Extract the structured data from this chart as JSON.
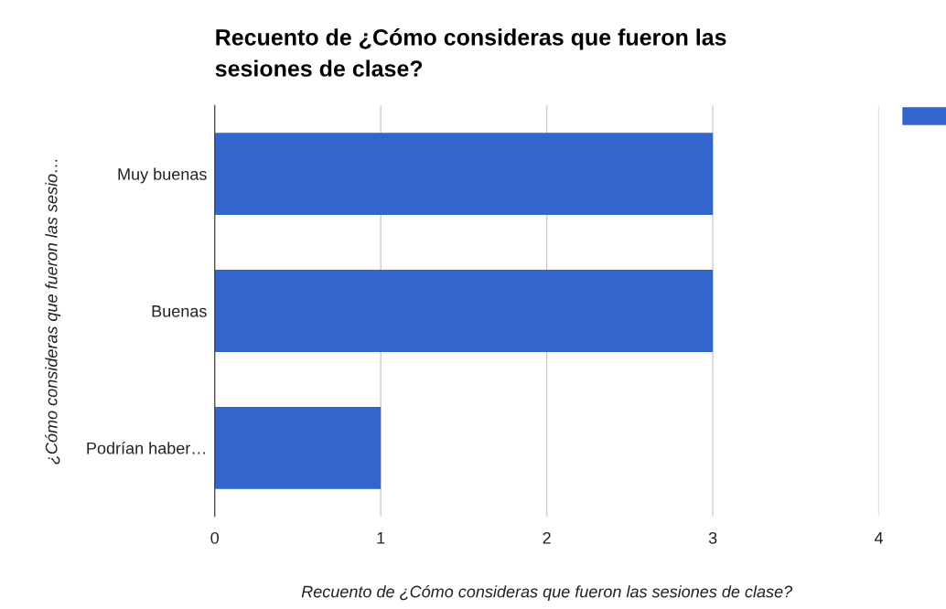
{
  "chart_data": {
    "type": "bar",
    "orientation": "horizontal",
    "title": "Recuento de ¿Cómo consideras que fueron las\nsesiones de clase?",
    "xlabel": "Recuento de ¿Cómo consideras que fueron las sesiones de clase?",
    "ylabel": "¿Cómo consideras que fueron las sesio…",
    "categories": [
      "Muy buenas",
      "Buenas",
      "Podrían haber…"
    ],
    "series": [
      {
        "color": "#3366cc",
        "values": [
          3,
          3,
          1
        ]
      }
    ],
    "xlim": [
      0,
      4
    ],
    "xticks": [
      0,
      1,
      2,
      3,
      4
    ],
    "grid": "x"
  }
}
